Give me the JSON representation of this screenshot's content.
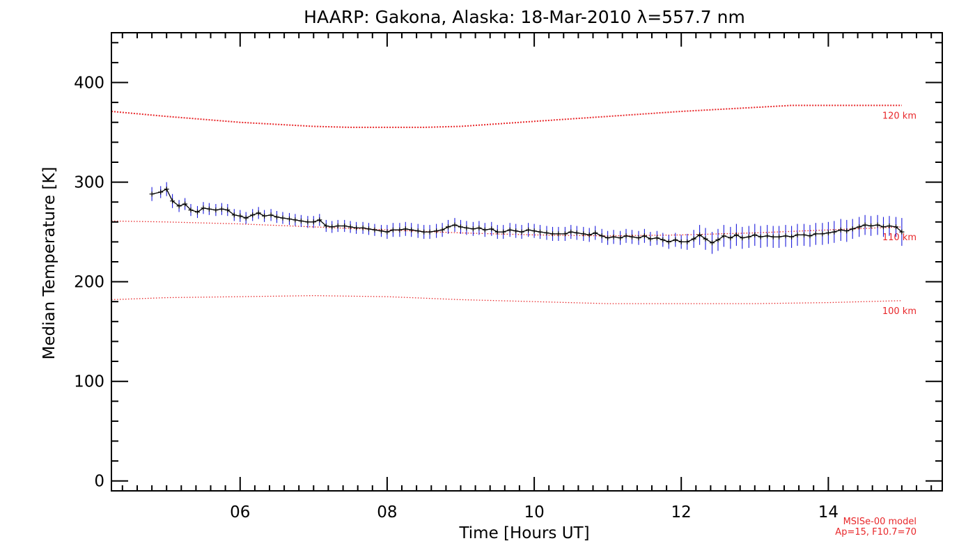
{
  "chart_data": {
    "type": "line",
    "title": "HAARP: Gakona,  Alaska: 18-Mar-2010 λ=557.7 nm",
    "xlabel": "Time [Hours UT]",
    "ylabel": "Median Temperature [K]",
    "xlim": [
      4.25,
      15.55
    ],
    "ylim": [
      -10,
      450
    ],
    "x_ticks": [
      6,
      8,
      10,
      12,
      14
    ],
    "x_tick_labels": [
      "06",
      "08",
      "10",
      "12",
      "14"
    ],
    "y_ticks": [
      0,
      100,
      200,
      300,
      400
    ],
    "y_tick_labels": [
      "0",
      "100",
      "200",
      "300",
      "400"
    ],
    "grid": false,
    "model_note": [
      "MSISe-00 model",
      "Ap=15, F10.7=70"
    ],
    "model_series": [
      {
        "name": "120 km",
        "color": "#e8272a",
        "x": [
          4.25,
          5.0,
          6.0,
          7.0,
          7.5,
          8.0,
          8.5,
          9.0,
          10.0,
          11.0,
          12.0,
          13.0,
          13.5,
          14.0,
          15.0
        ],
        "y": [
          371,
          366,
          360,
          356,
          355,
          355,
          355,
          356,
          361,
          366,
          371,
          375,
          377,
          377,
          377
        ]
      },
      {
        "name": "110 km",
        "color": "#e8272a",
        "x": [
          4.25,
          5.0,
          6.0,
          7.0,
          8.0,
          9.0,
          10.0,
          11.0,
          12.0,
          13.0,
          14.0,
          15.0
        ],
        "y": [
          261,
          260,
          258,
          255,
          252,
          249,
          247,
          246,
          247,
          249,
          252,
          255
        ]
      },
      {
        "name": "100 km",
        "color": "#e8272a",
        "x": [
          4.25,
          5.0,
          6.0,
          7.0,
          8.0,
          9.0,
          10.0,
          11.0,
          12.0,
          13.0,
          14.0,
          15.0
        ],
        "y": [
          182,
          184,
          185,
          186,
          185,
          182,
          180,
          178,
          178,
          178,
          179,
          181
        ]
      }
    ],
    "series": [
      {
        "name": "",
        "line_color": "#000000",
        "errorbar_color": "#1a1adb",
        "x": [
          4.8,
          4.92,
          5.0,
          5.08,
          5.17,
          5.25,
          5.33,
          5.42,
          5.5,
          5.58,
          5.67,
          5.75,
          5.83,
          5.92,
          6.0,
          6.08,
          6.17,
          6.25,
          6.33,
          6.42,
          6.5,
          6.58,
          6.67,
          6.75,
          6.83,
          6.92,
          7.0,
          7.08,
          7.17,
          7.25,
          7.33,
          7.42,
          7.5,
          7.58,
          7.67,
          7.75,
          7.83,
          7.92,
          8.0,
          8.08,
          8.17,
          8.25,
          8.33,
          8.42,
          8.5,
          8.58,
          8.67,
          8.75,
          8.83,
          8.92,
          9.0,
          9.08,
          9.17,
          9.25,
          9.33,
          9.42,
          9.5,
          9.58,
          9.67,
          9.75,
          9.83,
          9.92,
          10.0,
          10.08,
          10.17,
          10.25,
          10.33,
          10.42,
          10.5,
          10.58,
          10.67,
          10.75,
          10.83,
          10.92,
          11.0,
          11.08,
          11.17,
          11.25,
          11.33,
          11.42,
          11.5,
          11.58,
          11.67,
          11.75,
          11.83,
          11.92,
          12.0,
          12.08,
          12.17,
          12.25,
          12.33,
          12.42,
          12.5,
          12.58,
          12.67,
          12.75,
          12.83,
          12.92,
          13.0,
          13.08,
          13.17,
          13.25,
          13.33,
          13.42,
          13.5,
          13.58,
          13.67,
          13.75,
          13.83,
          13.92,
          14.0,
          14.08,
          14.17,
          14.25,
          14.33,
          14.42,
          14.5,
          14.58,
          14.67,
          14.75,
          14.83,
          14.92,
          15.0
        ],
        "y": [
          288,
          290,
          293,
          281,
          276,
          278,
          272,
          270,
          274,
          273,
          272,
          273,
          272,
          267,
          266,
          264,
          267,
          269,
          266,
          267,
          265,
          264,
          263,
          262,
          261,
          260,
          260,
          262,
          256,
          255,
          256,
          256,
          255,
          254,
          254,
          253,
          252,
          251,
          250,
          252,
          252,
          253,
          252,
          251,
          250,
          250,
          251,
          252,
          255,
          257,
          255,
          254,
          253,
          254,
          252,
          253,
          250,
          250,
          252,
          251,
          250,
          252,
          251,
          250,
          249,
          248,
          248,
          248,
          250,
          249,
          248,
          247,
          249,
          246,
          244,
          245,
          244,
          246,
          245,
          244,
          246,
          243,
          244,
          242,
          240,
          242,
          240,
          240,
          243,
          247,
          243,
          239,
          242,
          246,
          244,
          247,
          244,
          245,
          247,
          245,
          246,
          245,
          245,
          246,
          245,
          247,
          247,
          246,
          248,
          248,
          249,
          250,
          252,
          251,
          253,
          255,
          257,
          256,
          257,
          255,
          256,
          255,
          250
        ],
        "yerr": [
          7,
          6,
          7,
          7,
          6,
          6,
          6,
          6,
          6,
          6,
          6,
          6,
          6,
          6,
          6,
          6,
          6,
          6,
          6,
          6,
          6,
          6,
          6,
          6,
          6,
          6,
          6,
          6,
          6,
          6,
          6,
          6,
          6,
          6,
          6,
          6,
          6,
          6,
          7,
          7,
          7,
          7,
          7,
          7,
          7,
          7,
          7,
          7,
          7,
          7,
          7,
          7,
          7,
          7,
          7,
          7,
          7,
          7,
          7,
          7,
          7,
          7,
          7,
          7,
          7,
          7,
          7,
          7,
          7,
          7,
          7,
          7,
          7,
          7,
          7,
          7,
          7,
          7,
          7,
          7,
          7,
          7,
          7,
          7,
          7,
          7,
          7,
          8,
          9,
          10,
          11,
          11,
          11,
          11,
          11,
          11,
          11,
          11,
          11,
          11,
          11,
          11,
          11,
          11,
          11,
          11,
          11,
          11,
          11,
          11,
          11,
          11,
          11,
          11,
          10,
          10,
          10,
          10,
          10,
          10,
          10,
          10,
          14
        ]
      }
    ]
  }
}
